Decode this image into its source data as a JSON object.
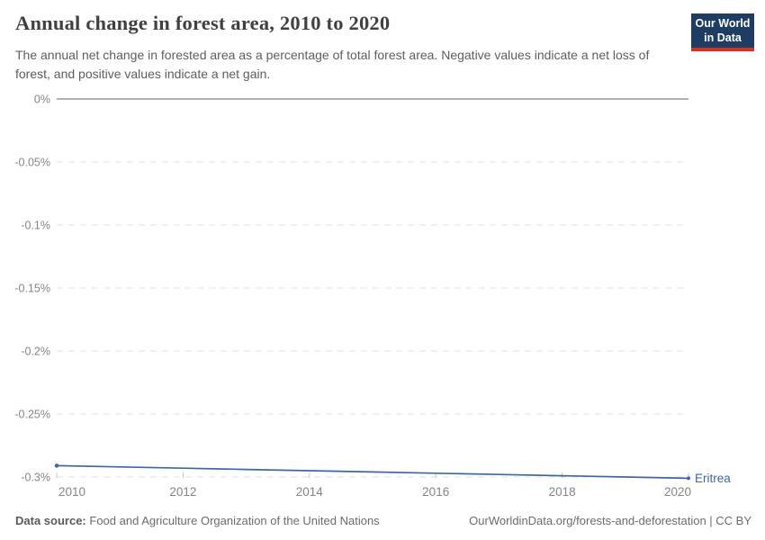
{
  "header": {
    "title": "Annual change in forest area, 2010 to 2020",
    "subtitle": "The annual net change in forested area as a percentage of total forest area. Negative values indicate a net loss of forest, and positive values indicate a net gain.",
    "logo_line1": "Our World",
    "logo_line2": "in Data"
  },
  "chart_data": {
    "type": "line",
    "title": "Annual change in forest area, 2010 to 2020",
    "xlabel": "",
    "ylabel": "",
    "x": [
      2010,
      2011,
      2012,
      2013,
      2014,
      2015,
      2016,
      2017,
      2018,
      2019,
      2020
    ],
    "series": [
      {
        "name": "Eritrea",
        "color": "#3d68a6",
        "values": [
          -0.291,
          -0.292,
          -0.293,
          -0.294,
          -0.295,
          -0.296,
          -0.297,
          -0.298,
          -0.299,
          -0.3,
          -0.301
        ]
      }
    ],
    "xlim": [
      2010,
      2020
    ],
    "ylim": [
      -0.3,
      0
    ],
    "yticks": [
      0,
      -0.05,
      -0.1,
      -0.15,
      -0.2,
      -0.25,
      -0.3
    ],
    "ytick_labels": [
      "0%",
      "-0.05%",
      "-0.1%",
      "-0.15%",
      "-0.2%",
      "-0.25%",
      "-0.3%"
    ],
    "xticks": [
      2010,
      2012,
      2014,
      2016,
      2018,
      2020
    ],
    "grid": "horizontal-dashed",
    "legend_position": "line-end-label"
  },
  "footer": {
    "source_label": "Data source:",
    "source_text": "Food and Agriculture Organization of the United Nations",
    "link_text": "OurWorldinData.org/forests-and-deforestation | CC BY"
  },
  "colors": {
    "accent_line": "#3d68a6",
    "logo_bg": "#1d3d63",
    "logo_red": "#dc2f1f",
    "grid": "#e2e2e2",
    "zero_line": "#a5a5a5",
    "x_tick_mark": "#c4c4c4",
    "tick_text": "#858585",
    "title_text": "#404040",
    "subtitle_text": "#5e5e5e",
    "footer_text": "#6c6c6c"
  }
}
